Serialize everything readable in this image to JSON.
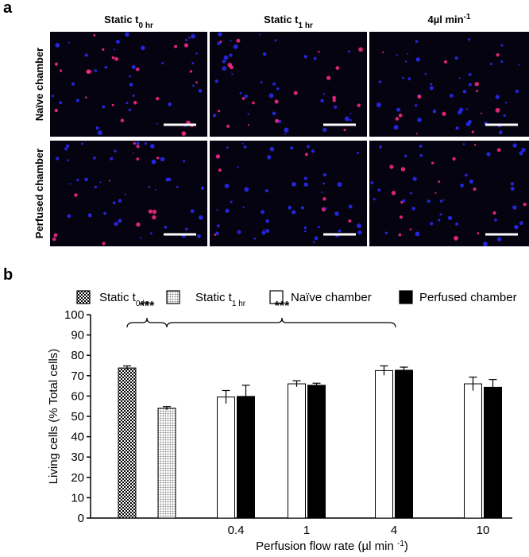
{
  "panel_a": {
    "label": "a",
    "columns": [
      {
        "text": "Static t",
        "sub": "0 hr"
      },
      {
        "text": "Static t",
        "sub": "1 hr"
      },
      {
        "text": "4µl min",
        "sup": "-1"
      }
    ],
    "rows": [
      "Naïve chamber",
      "Perfused chamber"
    ]
  },
  "chart_data": {
    "type": "bar",
    "panel_label": "b",
    "ylabel": "Living cells (% Total cells)",
    "xlabel": {
      "text": "Perfusion flow rate (µl min ",
      "sup": "-1",
      "after": ")"
    },
    "categories": [
      null,
      null,
      "0.4",
      "1",
      "4",
      "10"
    ],
    "series": [
      {
        "name": {
          "text": "Static t",
          "sub": "0 hr"
        },
        "color": "#000000",
        "pattern": "checker",
        "values": [
          73.8,
          null,
          null,
          null,
          null,
          null
        ],
        "errors": [
          1,
          null,
          null,
          null,
          null,
          null
        ]
      },
      {
        "name": {
          "text": "Static t",
          "sub": "1 hr"
        },
        "color": "#777777",
        "pattern": "dots",
        "values": [
          null,
          54,
          null,
          null,
          null,
          null
        ],
        "errors": [
          null,
          0.8,
          null,
          null,
          null,
          null
        ]
      },
      {
        "name": {
          "text": "Naïve chamber"
        },
        "color": "#ffffff",
        "values": [
          null,
          null,
          59.5,
          66,
          72.5,
          66
        ],
        "errors": [
          null,
          null,
          3.2,
          1.5,
          2.3,
          3.3
        ]
      },
      {
        "name": {
          "text": "Perfused chamber"
        },
        "color": "#000000",
        "values": [
          null,
          null,
          59.8,
          65.3,
          72.7,
          64.3
        ],
        "errors": [
          null,
          null,
          5.5,
          1,
          1.5,
          3.8
        ]
      }
    ],
    "ylim": [
      0,
      100
    ],
    "yticks": [
      0,
      10,
      20,
      30,
      40,
      50,
      60,
      70,
      80,
      90,
      100
    ],
    "annotations": [
      "***",
      "***"
    ]
  }
}
